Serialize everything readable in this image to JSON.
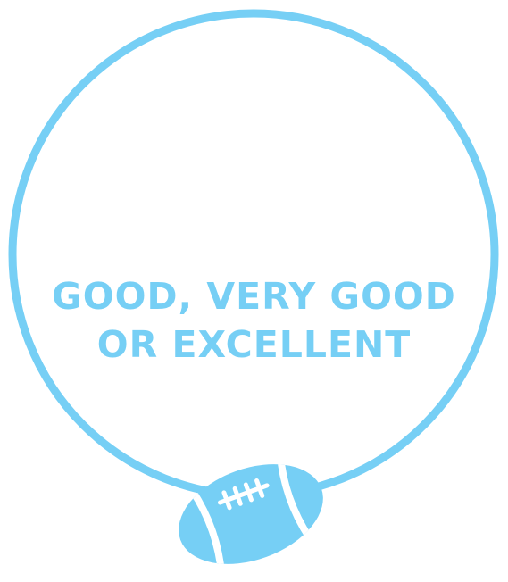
{
  "caption": {
    "line1": "GOOD, VERY GOOD",
    "line2": "OR EXCELLENT"
  },
  "colors": {
    "accent": "#76cff5",
    "background": "#ffffff"
  },
  "icons": {
    "ring": "circle-ring",
    "ball": "football-icon"
  }
}
